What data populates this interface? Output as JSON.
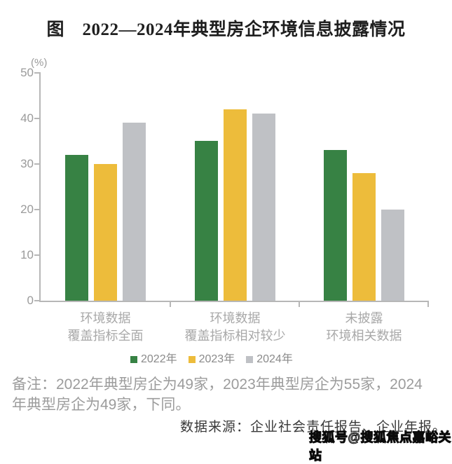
{
  "title": "图　2022—2024年典型房企环境信息披露情况",
  "chart_data": {
    "type": "bar",
    "title": "图 2022—2024年典型房企环境信息披露情况",
    "unit_label": "(%)",
    "ylabel": "(%)",
    "ylim": [
      0,
      50
    ],
    "yticks": [
      0,
      10,
      20,
      30,
      40,
      50
    ],
    "grid": false,
    "legend_position": "bottom",
    "axis_color": "#b7b7b7",
    "tick_label_color": "#9b9b9b",
    "categories": [
      "环境数据覆盖指标全面",
      "环境数据覆盖指标相对较少",
      "未披露环境相关数据"
    ],
    "category_lines": [
      [
        "环境数据",
        "覆盖指标全面"
      ],
      [
        "环境数据",
        "覆盖指标相对较少"
      ],
      [
        "未披露",
        "环境相关数据"
      ]
    ],
    "series": [
      {
        "name": "2022年",
        "color": "#378244",
        "values": [
          32,
          35,
          33
        ]
      },
      {
        "name": "2023年",
        "color": "#edbc3b",
        "values": [
          30,
          42,
          28
        ]
      },
      {
        "name": "2024年",
        "color": "#bfc1c5",
        "values": [
          39,
          41,
          20
        ]
      }
    ]
  },
  "note": {
    "full": "备注：2022年典型房企为49家，2023年典型房企为55家，2024年典型房企为49家，下同。",
    "lines": [
      "备注：2022年典型房企为49家，2023年典型房企为55家，2024",
      "年典型房企为49家，下同。"
    ]
  },
  "source": "数据来源：企业社会责任报告、企业年报。",
  "watermark": "搜狐号@搜狐焦点嘉峪关站"
}
